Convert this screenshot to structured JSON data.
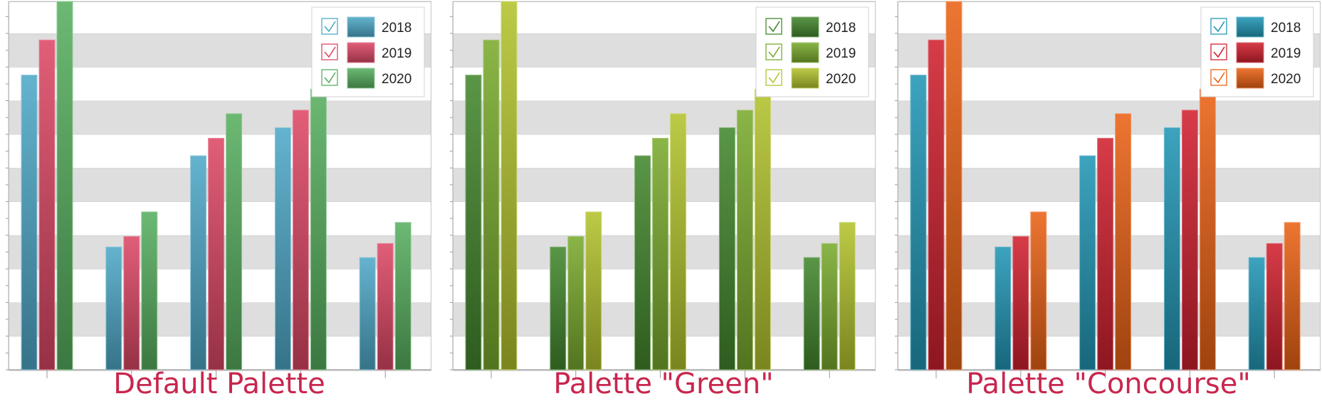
{
  "chart_data": [
    {
      "type": "bar",
      "caption": "Default Palette",
      "categories": [
        "",
        "",
        "",
        "",
        ""
      ],
      "series": [
        {
          "name": "2018",
          "values": [
            84,
            35,
            61,
            69,
            32
          ],
          "color": "#4fa9c8"
        },
        {
          "name": "2019",
          "values": [
            94,
            38,
            66,
            74,
            36
          ],
          "color": "#dd4866"
        },
        {
          "name": "2020",
          "values": [
            105,
            45,
            73,
            80,
            42
          ],
          "color": "#58b060"
        }
      ],
      "ylim": [
        0,
        105
      ],
      "grid": "alternating-bands",
      "legend": "top-right",
      "xlabel": "",
      "ylabel": ""
    },
    {
      "type": "bar",
      "caption": "Palette \"Green\"",
      "categories": [
        "",
        "",
        "",
        "",
        ""
      ],
      "series": [
        {
          "name": "2018",
          "values": [
            84,
            35,
            61,
            69,
            32
          ],
          "color": "#44882e"
        },
        {
          "name": "2019",
          "values": [
            94,
            38,
            66,
            74,
            36
          ],
          "color": "#7aab2e"
        },
        {
          "name": "2020",
          "values": [
            105,
            45,
            73,
            80,
            42
          ],
          "color": "#b3c32e"
        }
      ],
      "ylim": [
        0,
        105
      ],
      "grid": "alternating-bands",
      "legend": "top-right",
      "xlabel": "",
      "ylabel": ""
    },
    {
      "type": "bar",
      "caption": "Palette \"Concourse\"",
      "categories": [
        "",
        "",
        "",
        "",
        ""
      ],
      "series": [
        {
          "name": "2018",
          "values": [
            84,
            35,
            61,
            69,
            32
          ],
          "color": "#2297b5"
        },
        {
          "name": "2019",
          "values": [
            94,
            38,
            66,
            74,
            36
          ],
          "color": "#d0212f"
        },
        {
          "name": "2020",
          "values": [
            105,
            45,
            73,
            80,
            42
          ],
          "color": "#ea6216"
        }
      ],
      "ylim": [
        0,
        105
      ],
      "grid": "alternating-bands",
      "legend": "top-right",
      "xlabel": "",
      "ylabel": ""
    }
  ]
}
